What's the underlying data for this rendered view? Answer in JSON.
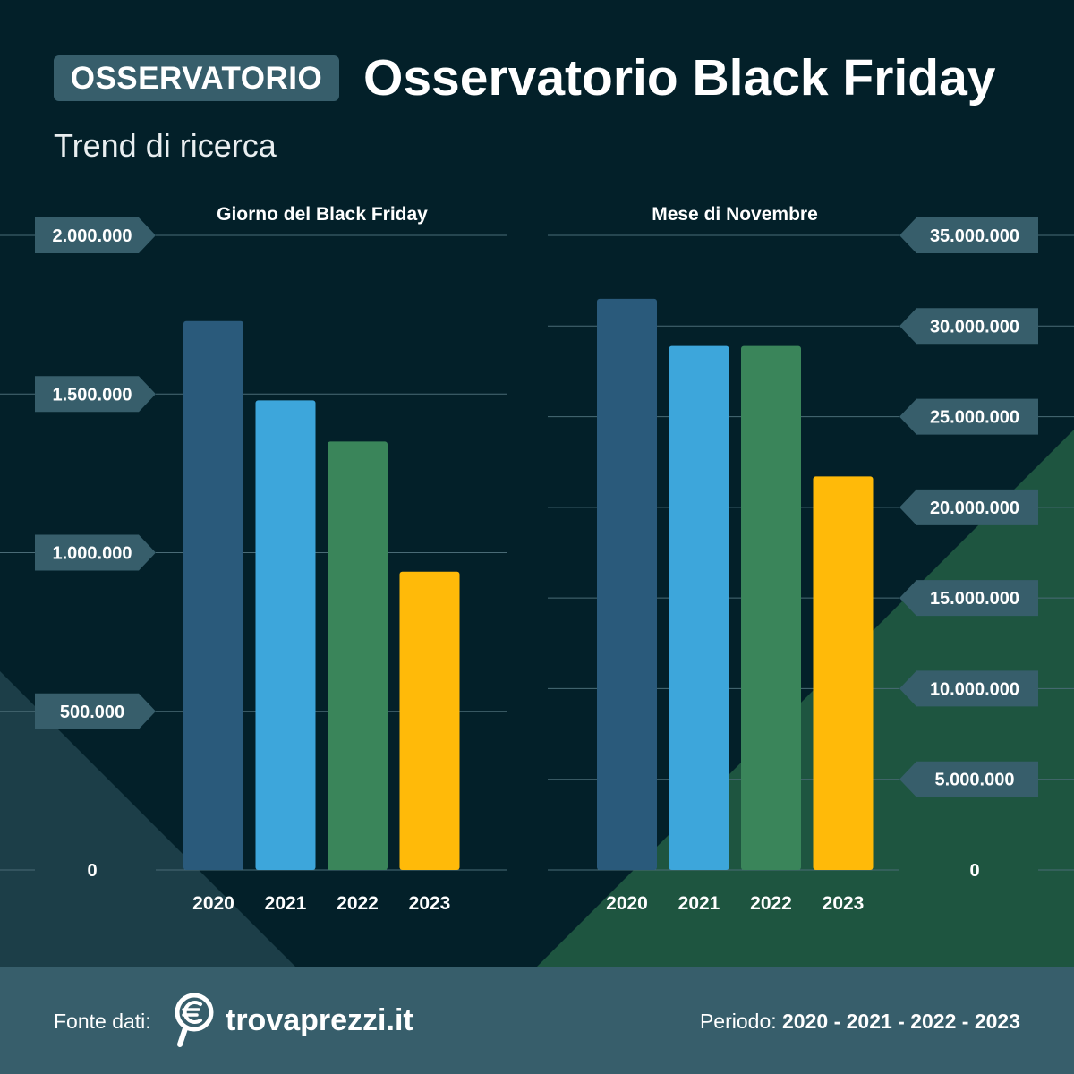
{
  "header": {
    "badge": "OSSERVATORIO",
    "title": "Osservatorio Black Friday",
    "subtitle": "Trend di ricerca"
  },
  "footer": {
    "fonte_label": "Fonte dati:",
    "brand": "trovaprezzi.it",
    "periodo_label": "Periodo:",
    "periodo_years": "2020 - 2021 - 2022 - 2023"
  },
  "colors": {
    "background": "#032029",
    "label_box": "#375e6b",
    "grid": "#4a6b76",
    "series": [
      "#2a5a7b",
      "#3da6db",
      "#3a855a",
      "#ffba09"
    ]
  },
  "chart_data": [
    {
      "type": "bar",
      "title": "Giorno del Black Friday",
      "categories": [
        "2020",
        "2021",
        "2022",
        "2023"
      ],
      "values": [
        1730000,
        1480000,
        1350000,
        940000
      ],
      "ylim": [
        0,
        2000000
      ],
      "yticks": [
        0,
        500000,
        1000000,
        1500000,
        2000000
      ],
      "ytick_labels": [
        "0",
        "500.000",
        "1.000.000",
        "1.500.000",
        "2.000.000"
      ],
      "axis_side": "left",
      "xlabel": "",
      "ylabel": ""
    },
    {
      "type": "bar",
      "title": "Mese di Novembre",
      "categories": [
        "2020",
        "2021",
        "2022",
        "2023"
      ],
      "values": [
        31500000,
        28900000,
        28900000,
        21700000
      ],
      "ylim": [
        0,
        35000000
      ],
      "yticks": [
        0,
        5000000,
        10000000,
        15000000,
        20000000,
        25000000,
        30000000,
        35000000
      ],
      "ytick_labels": [
        "0",
        "5.000.000",
        "10.000.000",
        "15.000.000",
        "20.000.000",
        "25.000.000",
        "30.000.000",
        "35.000.000"
      ],
      "axis_side": "right",
      "xlabel": "",
      "ylabel": ""
    }
  ]
}
